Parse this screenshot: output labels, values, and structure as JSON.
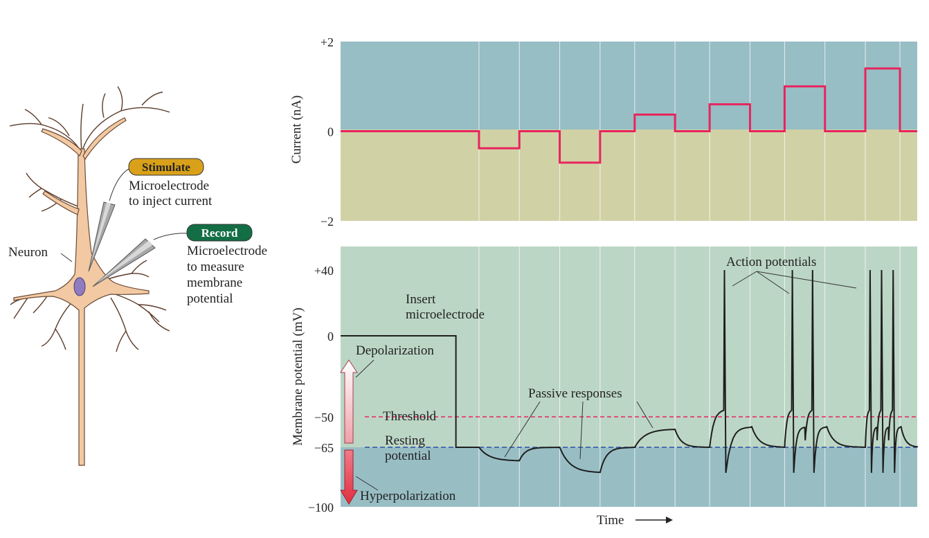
{
  "neuron_panel": {
    "neuron_label": "Neuron",
    "stimulate_tag": "Stimulate",
    "stimulate_desc": [
      "Microelectrode",
      "to inject current"
    ],
    "record_tag": "Record",
    "record_desc": [
      "Microelectrode",
      "to measure",
      "membrane",
      "potential"
    ]
  },
  "colors": {
    "current_bg_positive": "#96bec4",
    "current_bg_negative": "#d1d1a6",
    "membrane_bg_upper": "#bcd6c5",
    "membrane_bg_lower": "#98bec4",
    "current_trace": "#e8245e",
    "threshold_line": "#e8245e",
    "resting_line": "#2a4fa6",
    "stimulate_tag_fill": "#d9a11a",
    "record_tag_fill": "#136e45",
    "neuron_fill": "#f2c9a2",
    "nucleus_fill": "#8f7cc0"
  },
  "chart_data": [
    {
      "type": "line",
      "ylabel": "Current (nA)",
      "ytick_labels": [
        "+2",
        "0",
        "−2"
      ],
      "yticks": [
        2,
        0,
        -2
      ],
      "ylim": [
        -2,
        2
      ],
      "grid": true,
      "series": [
        {
          "steps": [
            {
              "t": 0,
              "v": 0
            },
            {
              "t": 0.24,
              "v": -0.38
            },
            {
              "t": 0.31,
              "v": 0
            },
            {
              "t": 0.38,
              "v": -0.7
            },
            {
              "t": 0.45,
              "v": 0
            },
            {
              "t": 0.51,
              "v": 0.37
            },
            {
              "t": 0.58,
              "v": 0
            },
            {
              "t": 0.64,
              "v": 0.6
            },
            {
              "t": 0.71,
              "v": 0
            },
            {
              "t": 0.77,
              "v": 1.0
            },
            {
              "t": 0.84,
              "v": 0
            },
            {
              "t": 0.91,
              "v": 1.4
            },
            {
              "t": 0.97,
              "v": 0
            },
            {
              "t": 1.0,
              "v": 0
            }
          ]
        }
      ]
    },
    {
      "type": "line",
      "ylabel": "Membrane potential (mV)",
      "xlabel": "Time",
      "ytick_labels": [
        "+40",
        "0",
        "−50",
        "−65",
        "−100"
      ],
      "yticks": [
        40,
        0,
        -50,
        -65,
        -100
      ],
      "ylim": [
        -100,
        40
      ],
      "threshold_mV": -50,
      "resting_mV": -65,
      "grid": true,
      "annotations": {
        "insert": [
          "Insert",
          "microelectrode"
        ],
        "depolarization": "Depolarization",
        "hyperpolarization": "Hyperpolarization",
        "threshold": "Threshold",
        "resting": [
          "Resting",
          "potential"
        ],
        "passive": "Passive responses",
        "action": "Action potentials"
      },
      "series": [
        {
          "segments": [
            {
              "kind": "flat",
              "t0": 0,
              "t1": 0.2,
              "v": 0
            },
            {
              "kind": "flat",
              "t0": 0.2,
              "t1": 0.24,
              "v": -65
            },
            {
              "kind": "passive",
              "t0": 0.24,
              "t1": 0.31,
              "v": -73
            },
            {
              "kind": "passive",
              "t0": 0.38,
              "t1": 0.45,
              "v": -80
            },
            {
              "kind": "passive",
              "t0": 0.51,
              "t1": 0.58,
              "v": -56
            },
            {
              "kind": "spikes",
              "t0": 0.64,
              "t1": 0.71,
              "count": 1,
              "peak": 40,
              "undershoot": -80
            },
            {
              "kind": "spikes",
              "t0": 0.77,
              "t1": 0.84,
              "count": 2,
              "peak": 40,
              "undershoot": -80
            },
            {
              "kind": "spikes",
              "t0": 0.91,
              "t1": 0.97,
              "count": 3,
              "peak": 40,
              "undershoot": -80
            }
          ]
        }
      ]
    }
  ]
}
